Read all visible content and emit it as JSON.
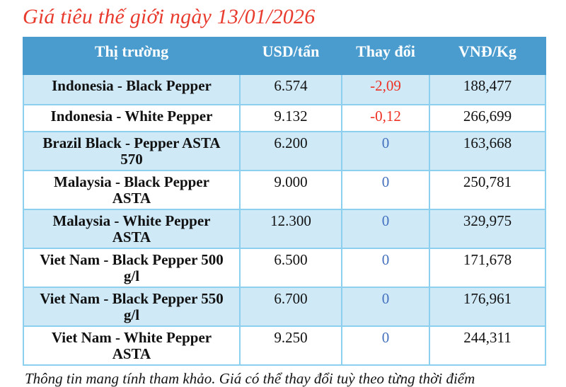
{
  "title": "Giá tiêu thế giới ngày 13/01/2026",
  "chart_data": {
    "type": "table",
    "title": "Giá tiêu thế giới ngày 13/01/2026",
    "columns": [
      "Thị trường",
      "USD/tấn",
      "Thay đổi",
      "VNĐ/Kg"
    ],
    "rows": [
      {
        "market": "Indonesia - Black Pepper",
        "usd_per_ton": "6.574",
        "change": "-2,09",
        "vnd_per_kg": "188,477"
      },
      {
        "market": "Indonesia - White Pepper",
        "usd_per_ton": "9.132",
        "change": "-0,12",
        "vnd_per_kg": "266,699"
      },
      {
        "market": "Brazil Black - Pepper ASTA\n570",
        "usd_per_ton": "6.200",
        "change": "0",
        "vnd_per_kg": "163,668"
      },
      {
        "market": "Malaysia - Black Pepper\nASTA",
        "usd_per_ton": "9.000",
        "change": "0",
        "vnd_per_kg": "250,781"
      },
      {
        "market": "Malaysia - White Pepper\nASTA",
        "usd_per_ton": "12.300",
        "change": "0",
        "vnd_per_kg": "329,975"
      },
      {
        "market": "Viet Nam - Black Pepper 500\ng/l",
        "usd_per_ton": "6.500",
        "change": "0",
        "vnd_per_kg": "171,678"
      },
      {
        "market": "Viet Nam - Black Pepper 550\ng/l",
        "usd_per_ton": "6.700",
        "change": "0",
        "vnd_per_kg": "176,961"
      },
      {
        "market": "Viet Nam - White Pepper\nASTA",
        "usd_per_ton": "9.250",
        "change": "0",
        "vnd_per_kg": "244,311"
      }
    ]
  },
  "footer": "Thông tin mang tính tham khảo. Giá có thể thay đổi tuỳ theo từng thời điểm",
  "colors": {
    "title_red": "#E83A2D",
    "header_bg": "#4A9CCE",
    "header_text": "#FFFFFF",
    "row_alt_bg": "#CFE9F7",
    "border": "#8CCFEE",
    "change_negative": "#EE3124",
    "change_zero": "#4470BE"
  }
}
